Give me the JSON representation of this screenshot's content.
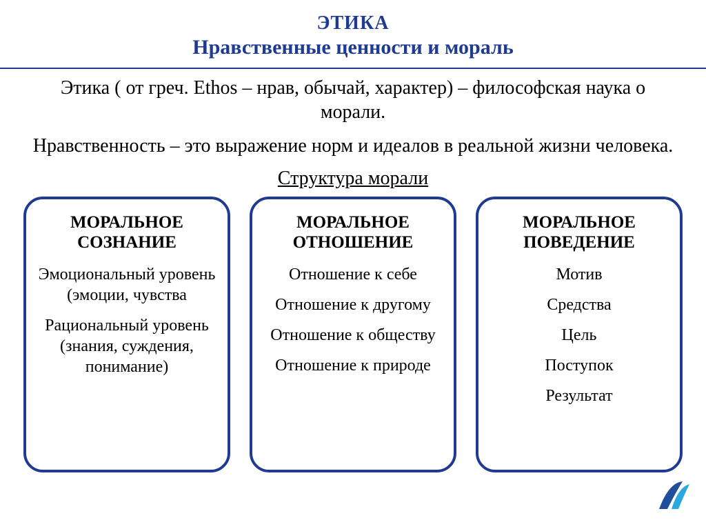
{
  "colors": {
    "heading": "#1f3a93",
    "hr": "#1f3a93",
    "box_border": "#1f3a93",
    "body_text": "#000000",
    "logo_main": "#1f4e9c",
    "logo_accent": "#2aa8e0"
  },
  "header": {
    "title": "ЭТИКА",
    "subtitle": "Нравственные ценности и мораль"
  },
  "intro": {
    "p1": "Этика ( от греч. Ethos – нрав, обычай, характер) – философская наука о морали.",
    "p2": "Нравственность – это выражение норм и идеалов в реальной жизни человека.",
    "structure_title": "Структура морали"
  },
  "boxes": [
    {
      "title": "МОРАЛЬНОЕ СОЗНАНИЕ",
      "items": [
        "Эмоциональный уровень (эмоции, чувства",
        "Рациональный уровень (знания, суждения, понимание)"
      ]
    },
    {
      "title": "МОРАЛЬНОЕ ОТНОШЕНИЕ",
      "items": [
        "Отношение к себе",
        "Отношение к другому",
        "Отношение к обществу",
        "Отношение к природе"
      ]
    },
    {
      "title": "МОРАЛЬНОЕ ПОВЕДЕНИЕ",
      "items": [
        "Мотив",
        "Средства",
        "Цель",
        "Поступок",
        "Результат"
      ]
    }
  ]
}
